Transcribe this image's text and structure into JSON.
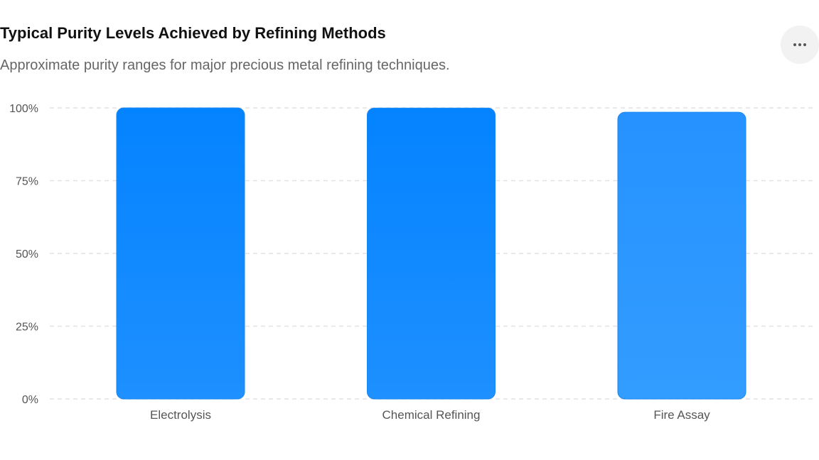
{
  "header": {
    "title": "Typical Purity Levels Achieved by Refining Methods",
    "subtitle": "Approximate purity ranges for major precious metal refining techniques.",
    "menu_icon": "more-horizontal-icon"
  },
  "colors": {
    "bar_top": "#0483ff",
    "bar_bottom": "#1e90ff",
    "bar_top_light": "#2592ff",
    "bar_bottom_light": "#339cff",
    "bar_stroke": "#1a86f0",
    "grid": "#e2e2e2"
  },
  "chart_data": {
    "type": "bar",
    "title": "",
    "xlabel": "",
    "ylabel": "",
    "categories": [
      "Electrolysis",
      "Chemical Refining",
      "Fire Assay"
    ],
    "values": [
      99.99,
      99.95,
      98.5
    ],
    "ylim": [
      0,
      100
    ],
    "yticks": [
      0,
      25,
      50,
      75,
      100
    ],
    "ytick_labels": [
      "0%",
      "25%",
      "50%",
      "75%",
      "100%"
    ],
    "grid": true,
    "legend": "none"
  }
}
